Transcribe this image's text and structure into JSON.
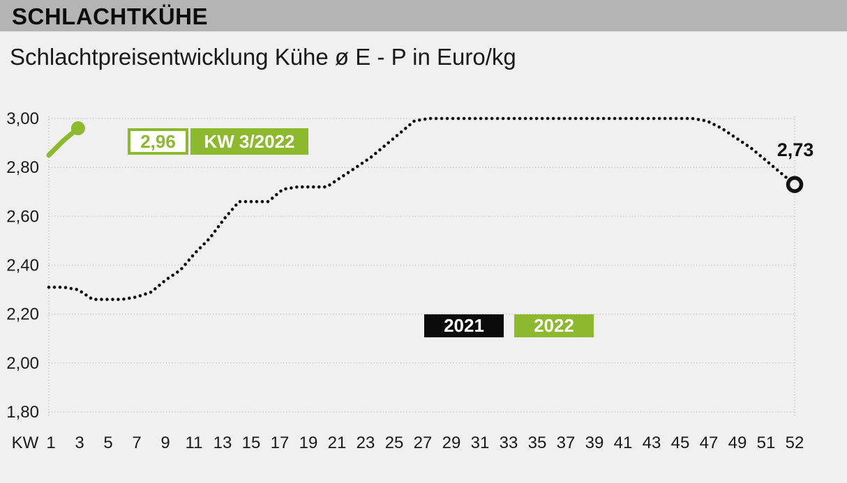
{
  "header": {
    "title": "SCHLACHTKÜHE"
  },
  "subtitle": "Schlachtpreisentwicklung Kühe ø E - P in Euro/kg",
  "callout": {
    "value": "2,96",
    "week": "KW 3/2022"
  },
  "end_label": "2,73",
  "legend": {
    "position": "inside-bottom-center",
    "items": [
      {
        "label": "2021",
        "color": "#0b0b0b"
      },
      {
        "label": "2022",
        "color": "#8cb92d"
      }
    ]
  },
  "colors": {
    "accent_green": "#8cb92d",
    "series_black": "#111111",
    "titlebar_gray": "#b4b4b4",
    "background": "#f0f0f0",
    "gridline": "#bdbdbd",
    "text": "#1a1a1a"
  },
  "chart_data": {
    "type": "line",
    "title": "Schlachtpreisentwicklung Kühe ø E - P in Euro/kg",
    "unit": "Euro/kg",
    "grid": "dotted",
    "grid_color": "#bdbdbd",
    "x_axis_label": "KW",
    "x_tick_labels": [
      "1",
      "3",
      "5",
      "7",
      "9",
      "11",
      "13",
      "15",
      "17",
      "19",
      "21",
      "23",
      "25",
      "27",
      "29",
      "31",
      "33",
      "35",
      "37",
      "39",
      "41",
      "43",
      "45",
      "47",
      "49",
      "51",
      "52"
    ],
    "y_tick_labels": [
      "3,00",
      "2,80",
      "2,60",
      "2,40",
      "2,20",
      "2,00",
      "1,80"
    ],
    "ylim": [
      1.8,
      3.0
    ],
    "y_step": 0.2,
    "x_weeks_range": [
      1,
      52
    ],
    "series": [
      {
        "name": "2021",
        "color": "#111111",
        "style": "dotted",
        "end_marker": "open-circle",
        "start_week": 1,
        "values": [
          2.31,
          2.31,
          2.3,
          2.26,
          2.26,
          2.26,
          2.27,
          2.29,
          2.34,
          2.38,
          2.45,
          2.51,
          2.59,
          2.66,
          2.66,
          2.66,
          2.71,
          2.72,
          2.72,
          2.72,
          2.76,
          2.8,
          2.84,
          2.89,
          2.94,
          2.99,
          3.0,
          3.0,
          3.0,
          3.0,
          3.0,
          3.0,
          3.0,
          3.0,
          3.0,
          3.0,
          3.0,
          3.0,
          3.0,
          3.0,
          3.0,
          3.0,
          3.0,
          3.0,
          3.0,
          2.99,
          2.96,
          2.92,
          2.88,
          2.83,
          2.78,
          2.73
        ]
      },
      {
        "name": "2022",
        "color": "#8cb92d",
        "style": "solid",
        "end_marker": "filled-circle",
        "start_week": 1,
        "values": [
          2.85,
          2.91,
          2.96
        ]
      }
    ],
    "annotations": {
      "last_2021_value_label": "2,73",
      "current_value_label": "2,96",
      "current_week_label": "KW 3/2022"
    }
  }
}
